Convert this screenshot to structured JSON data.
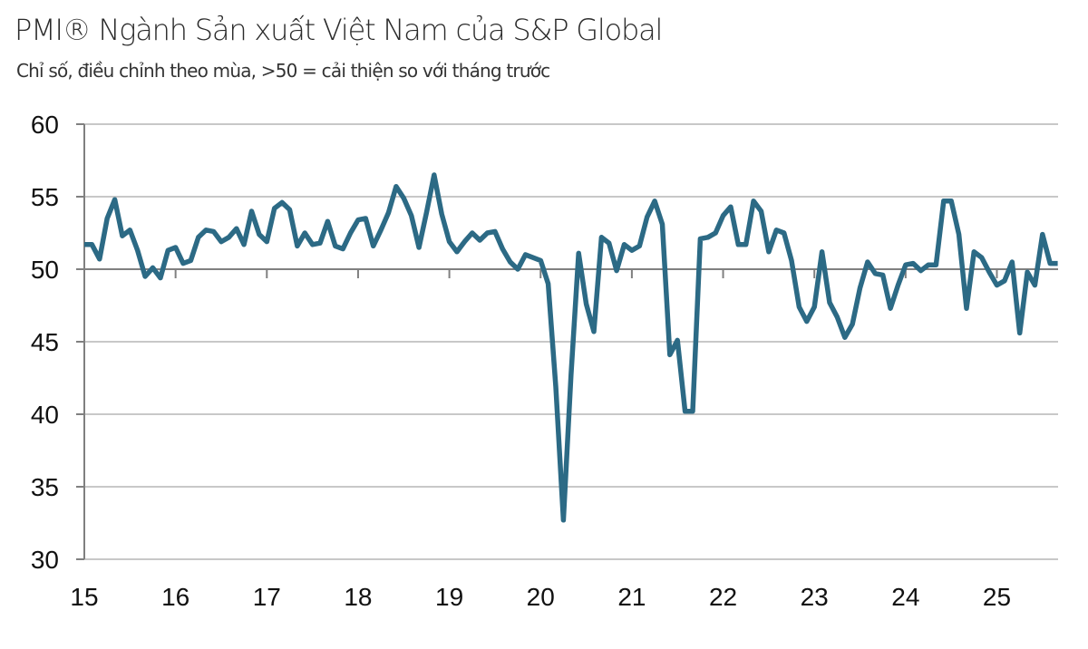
{
  "chart_data": {
    "type": "line",
    "title": "PMI® Ngành Sản xuất Việt Nam của S&P Global",
    "subtitle": "Chỉ số, điều chỉnh theo mùa, >50 = cải thiện so với tháng trước",
    "xlabel": "",
    "ylabel": "",
    "ylim": [
      30,
      60
    ],
    "yticks": [
      30,
      35,
      40,
      45,
      50,
      55,
      60
    ],
    "ytick_labels": [
      "30",
      "35",
      "40",
      "45",
      "50",
      "55",
      "60"
    ],
    "xticks": [
      "15",
      "16",
      "17",
      "18",
      "19",
      "20",
      "21",
      "22",
      "23",
      "24",
      "25"
    ],
    "x_start": "2015-01",
    "x_end": "2025-09",
    "frequency": "monthly",
    "grid": "horizontal",
    "reference_line": 50,
    "legend": "none",
    "series": [
      {
        "name": "PMI",
        "color": "#2c6a85",
        "values": [
          51.7,
          51.7,
          50.7,
          53.5,
          54.8,
          52.3,
          52.7,
          51.3,
          49.5,
          50.1,
          49.4,
          51.3,
          51.5,
          50.4,
          50.6,
          52.2,
          52.7,
          52.6,
          51.9,
          52.2,
          52.8,
          51.7,
          54.0,
          52.4,
          51.9,
          54.2,
          54.6,
          54.1,
          51.6,
          52.5,
          51.7,
          51.8,
          53.3,
          51.6,
          51.4,
          52.5,
          53.4,
          53.5,
          51.6,
          52.7,
          53.9,
          55.7,
          54.9,
          53.7,
          51.5,
          53.9,
          56.5,
          53.8,
          51.9,
          51.2,
          51.9,
          52.5,
          52.0,
          52.5,
          52.6,
          51.4,
          50.5,
          50.0,
          51.0,
          50.8,
          50.6,
          49.0,
          41.9,
          32.7,
          42.7,
          51.1,
          47.6,
          45.7,
          52.2,
          51.8,
          49.9,
          51.7,
          51.3,
          51.6,
          53.6,
          54.7,
          53.1,
          44.1,
          45.1,
          40.2,
          40.2,
          52.1,
          52.2,
          52.5,
          53.7,
          54.3,
          51.7,
          51.7,
          54.7,
          54.0,
          51.2,
          52.7,
          52.5,
          50.6,
          47.4,
          46.4,
          47.4,
          51.2,
          47.7,
          46.7,
          45.3,
          46.2,
          48.7,
          50.5,
          49.7,
          49.6,
          47.3,
          48.9,
          50.3,
          50.4,
          49.9,
          50.3,
          50.3,
          54.7,
          54.7,
          52.4,
          47.3,
          51.2,
          50.8,
          49.8,
          48.9,
          49.2,
          50.5,
          45.6,
          49.8,
          48.9,
          52.4,
          50.4,
          50.4
        ]
      }
    ]
  },
  "colors": {
    "line": "#2c6a85",
    "grid": "#c8c8c8",
    "axis": "#808080",
    "text": "#111111"
  }
}
